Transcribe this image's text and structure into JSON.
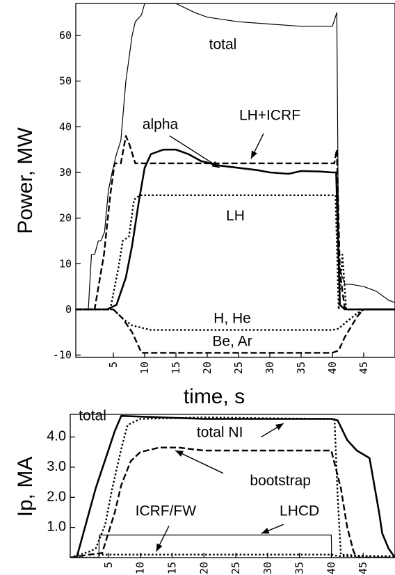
{
  "chart_data": [
    {
      "type": "line",
      "title": "",
      "xlabel": "time, s",
      "ylabel": "Power, MW",
      "xlim": [
        -1,
        50
      ],
      "ylim": [
        -10.5,
        67
      ],
      "grid": false,
      "xticks": [
        5,
        10,
        15,
        20,
        25,
        30,
        35,
        40,
        45
      ],
      "xtick_labels": [
        "5",
        "10",
        "15",
        "20",
        "25",
        "30",
        "35",
        "40",
        "45"
      ],
      "yticks": [
        -10,
        0,
        10,
        20,
        30,
        40,
        50,
        60
      ],
      "ytick_labels": [
        "-10",
        "0",
        "10",
        "20",
        "30",
        "40",
        "50",
        "60"
      ],
      "annotations": [
        {
          "text": "total",
          "x": 22.5,
          "y": 57
        },
        {
          "text": "alpha",
          "x": 12.5,
          "y": 39.5
        },
        {
          "text": "LH+ICRF",
          "x": 30,
          "y": 41.5
        },
        {
          "text": "LH",
          "x": 24.5,
          "y": 19.5
        },
        {
          "text": "H, He",
          "x": 24,
          "y": -3
        },
        {
          "text": "Be, Ar",
          "x": 24,
          "y": -8
        }
      ],
      "series": [
        {
          "name": "total",
          "style": "solid-thin",
          "x": [
            -1,
            1,
            1.5,
            2,
            2.6,
            3,
            3.6,
            4.2,
            4.8,
            5.5,
            6.2,
            7,
            8,
            8.5,
            9.5,
            10,
            12,
            15,
            18,
            20,
            25,
            30,
            35,
            38,
            40,
            40.7,
            41,
            41.6,
            42,
            43,
            45,
            47,
            49,
            50
          ],
          "y": [
            0,
            0,
            12,
            12,
            15,
            15,
            17,
            26,
            30,
            34,
            37,
            50,
            60,
            63,
            64.5,
            67,
            67,
            67,
            65,
            64,
            63,
            62.5,
            62,
            62,
            62,
            65,
            10,
            7,
            5.5,
            5.5,
            5,
            4,
            2,
            1.5
          ]
        },
        {
          "name": "LH+ICRF",
          "style": "dashed",
          "x": [
            -1,
            1,
            1.5,
            2,
            3.5,
            4.5,
            5.2,
            6.2,
            7,
            7.6,
            8.5,
            9.5,
            10,
            40.3,
            40.7,
            41.2,
            42,
            43.5,
            50
          ],
          "y": [
            0,
            0,
            0,
            0,
            12,
            25,
            32,
            32,
            38,
            36,
            32,
            32,
            32,
            32,
            35,
            8,
            0,
            0,
            0
          ]
        },
        {
          "name": "alpha",
          "style": "solid-thick",
          "x": [
            -1,
            2,
            4,
            5.5,
            7,
            8,
            9,
            10,
            11,
            13,
            15,
            17,
            19,
            22,
            25,
            28,
            30,
            33,
            35,
            38,
            40,
            40.6,
            41.2,
            42,
            45,
            48,
            50
          ],
          "y": [
            0,
            0,
            0,
            1,
            7,
            14,
            23,
            31,
            34,
            35,
            35,
            34,
            32.5,
            31.5,
            31,
            30.5,
            30,
            29.7,
            30.3,
            30.2,
            30,
            30,
            1,
            0,
            0,
            0,
            0
          ]
        },
        {
          "name": "LH",
          "style": "dotted",
          "x": [
            -1,
            2,
            3,
            4.5,
            5.8,
            6.5,
            7.5,
            8.3,
            9.2,
            10,
            40.5,
            41,
            41.6,
            42.2,
            50
          ],
          "y": [
            0,
            0,
            0,
            0,
            9,
            15,
            16,
            24,
            25,
            25,
            25,
            0,
            12,
            0,
            0
          ]
        },
        {
          "name": "H, He",
          "style": "dotted",
          "x": [
            -1,
            3,
            5,
            6.5,
            8,
            9.5,
            11,
            40,
            41,
            42,
            44,
            45,
            50
          ],
          "y": [
            0,
            0,
            0,
            -2,
            -3.5,
            -4,
            -4.5,
            -4.5,
            -4.2,
            -3,
            -0.8,
            0,
            0
          ]
        },
        {
          "name": "Be, Ar",
          "style": "dashed",
          "x": [
            -1,
            3,
            5,
            6.5,
            8,
            9.5,
            11,
            20,
            40,
            41,
            42,
            44,
            45,
            50
          ],
          "y": [
            0,
            0,
            0,
            -2,
            -5,
            -9.5,
            -9.5,
            -9.5,
            -9.5,
            -9,
            -6,
            -1.5,
            0,
            0
          ]
        }
      ]
    },
    {
      "type": "line",
      "title": "",
      "xlabel": "",
      "ylabel": "Ip, MA",
      "xlim": [
        -1,
        50
      ],
      "ylim": [
        0,
        4.75
      ],
      "grid": false,
      "xticks": [
        5,
        10,
        15,
        20,
        25,
        30,
        35,
        40,
        45
      ],
      "xtick_labels": [
        "5",
        "10",
        "15",
        "20",
        "25",
        "30",
        "35",
        "40",
        "45"
      ],
      "yticks": [
        1.0,
        2.0,
        3.0,
        4.0
      ],
      "ytick_labels": [
        "1.0",
        "2.0",
        "3.0",
        "4.0"
      ],
      "annotations": [
        {
          "text": "total",
          "x": 2.5,
          "y": 4.55
        },
        {
          "text": "total NI",
          "x": 22.5,
          "y": 4.0
        },
        {
          "text": "bootstrap",
          "x": 32,
          "y": 2.4
        },
        {
          "text": "ICRF/FW",
          "x": 14,
          "y": 1.4
        },
        {
          "text": "LHCD",
          "x": 35,
          "y": 1.4
        }
      ],
      "series": [
        {
          "name": "total",
          "style": "solid-thick",
          "x": [
            -1,
            0,
            3,
            6,
            7,
            20,
            30,
            40,
            41,
            42.5,
            44,
            46,
            47.5,
            48,
            49,
            50
          ],
          "y": [
            0,
            0,
            2.3,
            4.2,
            4.7,
            4.6,
            4.6,
            4.6,
            4.55,
            3.9,
            3.55,
            3.3,
            1.5,
            0.8,
            0.3,
            0
          ]
        },
        {
          "name": "total NI",
          "style": "dotted",
          "x": [
            -1,
            2,
            3,
            4.5,
            5.5,
            7,
            8,
            10,
            20,
            30,
            40,
            40.5,
            41,
            41.5,
            50
          ],
          "y": [
            0,
            0.2,
            0.3,
            1.1,
            2.2,
            3.6,
            4.4,
            4.6,
            4.65,
            4.62,
            4.6,
            4.6,
            2.0,
            0.1,
            0
          ]
        },
        {
          "name": "bootstrap",
          "style": "dashed",
          "x": [
            -1,
            2,
            4,
            6,
            7,
            8.5,
            10,
            13,
            16,
            18,
            20,
            25,
            30,
            35,
            40,
            41.5,
            42.5,
            43.5,
            44,
            50
          ],
          "y": [
            0,
            0.1,
            0.15,
            1.5,
            2.4,
            3.2,
            3.5,
            3.65,
            3.65,
            3.6,
            3.55,
            3.55,
            3.55,
            3.55,
            3.55,
            2.3,
            1.0,
            0.2,
            0,
            0
          ]
        },
        {
          "name": "LHCD",
          "style": "solid-thin",
          "x": [
            -1,
            3.5,
            3.55,
            40,
            40.05,
            50
          ],
          "y": [
            0,
            0,
            0.75,
            0.75,
            0,
            0
          ]
        },
        {
          "name": "ICRF/FW",
          "style": "dotted",
          "x": [
            -1,
            3.5,
            3.55,
            40,
            41,
            50
          ],
          "y": [
            0,
            0,
            0.1,
            0.1,
            0.05,
            0.05
          ]
        }
      ]
    }
  ]
}
